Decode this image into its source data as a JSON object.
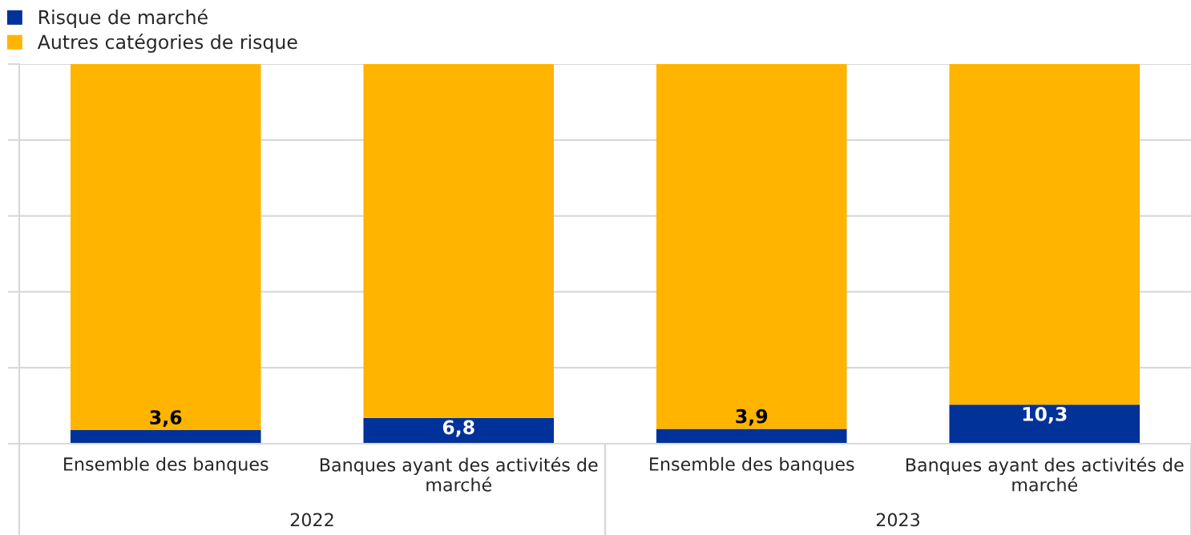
{
  "chart_data": {
    "type": "bar",
    "stacked": true,
    "ylim": [
      0,
      100
    ],
    "tick_labels": "x",
    "yticks": [
      {
        "value": 0,
        "label": null
      },
      {
        "value": 20,
        "label": null
      },
      {
        "value": 40,
        "label": null
      },
      {
        "value": 60,
        "label": null
      },
      {
        "value": 80,
        "label": null
      },
      {
        "value": 100,
        "label": null
      }
    ],
    "categories": [
      "Ensemble des banques",
      "Banques ayant des activités de\nmarché",
      "Ensemble des banques",
      "Banques ayant des activités de\nmarché"
    ],
    "series": [
      {
        "name": "Risque de marché",
        "color": "#003299",
        "values": [
          3.6,
          6.8,
          3.9,
          10.3
        ],
        "value_labels": [
          "3,6",
          "6,8",
          "3,9",
          "10,3"
        ]
      },
      {
        "name": "Autres catégories de risque",
        "color": "#ffb400",
        "values": [
          96.4,
          93.2,
          96.1,
          89.7
        ]
      }
    ],
    "annotations": [
      "2022",
      "2023"
    ],
    "grid": "y",
    "legend": "top left"
  }
}
